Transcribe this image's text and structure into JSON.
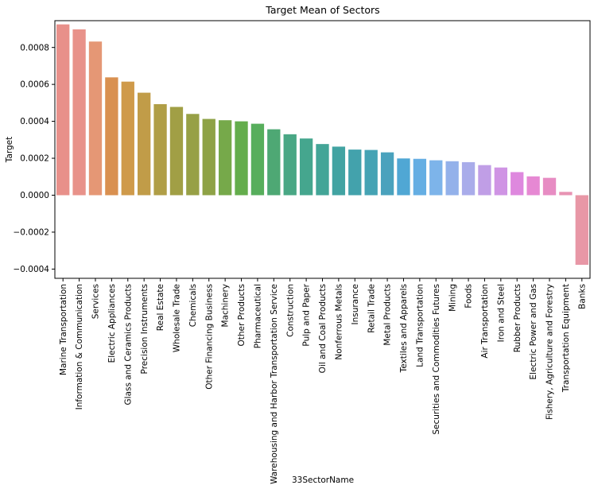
{
  "chart_data": {
    "type": "bar",
    "title": "Target Mean of Sectors",
    "xlabel": "33SectorName",
    "ylabel": "Target",
    "ylim": [
      -0.00045,
      0.000945
    ],
    "yticks": [
      -0.0004,
      -0.0002,
      0.0,
      0.0002,
      0.0004,
      0.0006,
      0.0008
    ],
    "ytick_labels": [
      "−0.0004",
      "−0.0002",
      "0.0000",
      "0.0002",
      "0.0004",
      "0.0006",
      "0.0008"
    ],
    "grid": false,
    "legend": "none",
    "categories": [
      "Marine Transportation",
      "Information & Communication",
      "Services",
      "Electric Appliances",
      "Glass and Ceramics Products",
      "Precision Instruments",
      "Real Estate",
      "Wholesale Trade",
      "Chemicals",
      "Other Financing Business",
      "Machinery",
      "Other Products",
      "Pharmaceutical",
      "Warehousing and Harbor Transportation Service",
      "Construction",
      "Pulp and Paper",
      "Oil and Coal Products",
      "Nonferrous Metals",
      "Insurance",
      "Retail Trade",
      "Metal Products",
      "Textiles and Apparels",
      "Land Transportation",
      "Securities and Commodities Futures",
      "Mining",
      "Foods",
      "Air Transportation",
      "Iron and Steel",
      "Rubber Products",
      "Electric Power and Gas",
      "Fishery, Agriculture and Forestry",
      "Transportation Equipment",
      "Banks"
    ],
    "values": [
      0.000925,
      0.000898,
      0.000832,
      0.000638,
      0.000615,
      0.000555,
      0.000493,
      0.000478,
      0.00044,
      0.000413,
      0.000406,
      0.0004,
      0.000387,
      0.000357,
      0.00033,
      0.000307,
      0.000277,
      0.000263,
      0.000247,
      0.000245,
      0.000232,
      0.000199,
      0.000197,
      0.000189,
      0.000184,
      0.000179,
      0.000163,
      0.00015,
      0.000125,
      0.000102,
      9.4e-05,
      1.8e-05,
      -0.000377
    ],
    "colors": [
      "#e8908a",
      "#e8928a",
      "#e59775",
      "#d99050",
      "#cf9a4a",
      "#c19c48",
      "#b09e46",
      "#a19f45",
      "#97a046",
      "#8ea246",
      "#76a94a",
      "#64ad4c",
      "#57ae5c",
      "#4ea874",
      "#49a784",
      "#45a68e",
      "#43a597",
      "#42a3a2",
      "#43a2ac",
      "#45a3b4",
      "#4aa2bd",
      "#50a7d4",
      "#65aee3",
      "#7db4ea",
      "#93b1ea",
      "#a9acea",
      "#c09ee6",
      "#cf94e4",
      "#de88de",
      "#e688d3",
      "#e78cc3",
      "#e893b3",
      "#e897a6"
    ]
  }
}
